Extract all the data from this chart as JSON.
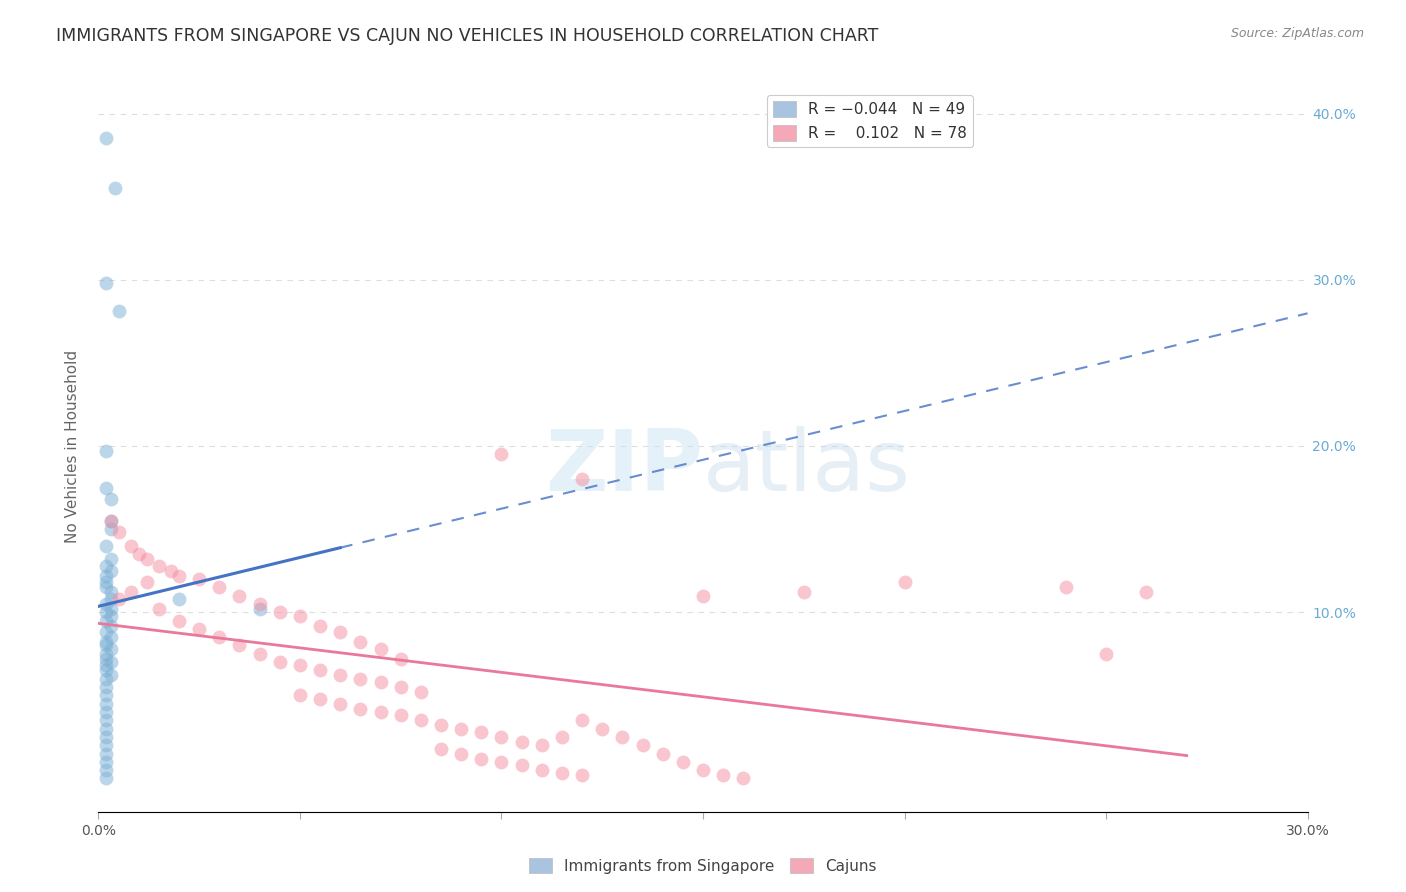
{
  "title": "IMMIGRANTS FROM SINGAPORE VS CAJUN NO VEHICLES IN HOUSEHOLD CORRELATION CHART",
  "source": "Source: ZipAtlas.com",
  "ylabel": "No Vehicles in Household",
  "xlim": [
    0.0,
    0.3
  ],
  "ylim": [
    -0.02,
    0.42
  ],
  "yticks": [
    0.0,
    0.1,
    0.2,
    0.3,
    0.4
  ],
  "xticks": [
    0.0,
    0.05,
    0.1,
    0.15,
    0.2,
    0.25,
    0.3
  ],
  "singapore_color": "#7bafd4",
  "cajun_color": "#f48ca0",
  "singapore_legend_color": "#a8c4e0",
  "cajun_legend_color": "#f4a8b8",
  "singapore_line_color": "#4472c4",
  "cajun_line_color": "#e8799a",
  "background_color": "#ffffff",
  "grid_color": "#dddddd",
  "watermark": "ZIPatlas",
  "singapore_points": [
    [
      0.002,
      0.385
    ],
    [
      0.004,
      0.355
    ],
    [
      0.002,
      0.298
    ],
    [
      0.005,
      0.281
    ],
    [
      0.002,
      0.197
    ],
    [
      0.002,
      0.175
    ],
    [
      0.003,
      0.168
    ],
    [
      0.002,
      0.14
    ],
    [
      0.003,
      0.132
    ],
    [
      0.002,
      0.128
    ],
    [
      0.003,
      0.125
    ],
    [
      0.002,
      0.122
    ],
    [
      0.002,
      0.118
    ],
    [
      0.002,
      0.115
    ],
    [
      0.003,
      0.112
    ],
    [
      0.003,
      0.108
    ],
    [
      0.002,
      0.105
    ],
    [
      0.003,
      0.102
    ],
    [
      0.002,
      0.1
    ],
    [
      0.003,
      0.098
    ],
    [
      0.002,
      0.095
    ],
    [
      0.003,
      0.092
    ],
    [
      0.002,
      0.088
    ],
    [
      0.003,
      0.085
    ],
    [
      0.002,
      0.082
    ],
    [
      0.002,
      0.08
    ],
    [
      0.003,
      0.078
    ],
    [
      0.002,
      0.075
    ],
    [
      0.002,
      0.072
    ],
    [
      0.003,
      0.07
    ],
    [
      0.002,
      0.068
    ],
    [
      0.002,
      0.065
    ],
    [
      0.003,
      0.062
    ],
    [
      0.002,
      0.06
    ],
    [
      0.002,
      0.055
    ],
    [
      0.002,
      0.05
    ],
    [
      0.002,
      0.045
    ],
    [
      0.002,
      0.04
    ],
    [
      0.002,
      0.035
    ],
    [
      0.002,
      0.03
    ],
    [
      0.002,
      0.025
    ],
    [
      0.002,
      0.02
    ],
    [
      0.002,
      0.015
    ],
    [
      0.002,
      0.01
    ],
    [
      0.002,
      0.005
    ],
    [
      0.002,
      0.0
    ],
    [
      0.02,
      0.108
    ],
    [
      0.04,
      0.102
    ],
    [
      0.003,
      0.155
    ],
    [
      0.003,
      0.15
    ]
  ],
  "cajun_points": [
    [
      0.003,
      0.155
    ],
    [
      0.005,
      0.148
    ],
    [
      0.008,
      0.14
    ],
    [
      0.01,
      0.135
    ],
    [
      0.012,
      0.132
    ],
    [
      0.015,
      0.128
    ],
    [
      0.018,
      0.125
    ],
    [
      0.02,
      0.122
    ],
    [
      0.025,
      0.12
    ],
    [
      0.012,
      0.118
    ],
    [
      0.03,
      0.115
    ],
    [
      0.008,
      0.112
    ],
    [
      0.035,
      0.11
    ],
    [
      0.005,
      0.108
    ],
    [
      0.04,
      0.105
    ],
    [
      0.015,
      0.102
    ],
    [
      0.045,
      0.1
    ],
    [
      0.05,
      0.098
    ],
    [
      0.02,
      0.095
    ],
    [
      0.055,
      0.092
    ],
    [
      0.025,
      0.09
    ],
    [
      0.06,
      0.088
    ],
    [
      0.03,
      0.085
    ],
    [
      0.065,
      0.082
    ],
    [
      0.035,
      0.08
    ],
    [
      0.07,
      0.078
    ],
    [
      0.04,
      0.075
    ],
    [
      0.075,
      0.072
    ],
    [
      0.045,
      0.07
    ],
    [
      0.05,
      0.068
    ],
    [
      0.055,
      0.065
    ],
    [
      0.06,
      0.062
    ],
    [
      0.065,
      0.06
    ],
    [
      0.07,
      0.058
    ],
    [
      0.075,
      0.055
    ],
    [
      0.08,
      0.052
    ],
    [
      0.05,
      0.05
    ],
    [
      0.055,
      0.048
    ],
    [
      0.06,
      0.045
    ],
    [
      0.065,
      0.042
    ],
    [
      0.07,
      0.04
    ],
    [
      0.075,
      0.038
    ],
    [
      0.08,
      0.035
    ],
    [
      0.085,
      0.032
    ],
    [
      0.09,
      0.03
    ],
    [
      0.095,
      0.028
    ],
    [
      0.1,
      0.025
    ],
    [
      0.105,
      0.022
    ],
    [
      0.11,
      0.02
    ],
    [
      0.085,
      0.018
    ],
    [
      0.09,
      0.015
    ],
    [
      0.095,
      0.012
    ],
    [
      0.1,
      0.01
    ],
    [
      0.105,
      0.008
    ],
    [
      0.11,
      0.005
    ],
    [
      0.115,
      0.003
    ],
    [
      0.12,
      0.002
    ],
    [
      0.115,
      0.025
    ],
    [
      0.12,
      0.035
    ],
    [
      0.125,
      0.03
    ],
    [
      0.13,
      0.025
    ],
    [
      0.135,
      0.02
    ],
    [
      0.14,
      0.015
    ],
    [
      0.145,
      0.01
    ],
    [
      0.15,
      0.005
    ],
    [
      0.155,
      0.002
    ],
    [
      0.16,
      0.0
    ],
    [
      0.15,
      0.11
    ],
    [
      0.2,
      0.118
    ],
    [
      0.24,
      0.115
    ],
    [
      0.25,
      0.075
    ],
    [
      0.1,
      0.195
    ],
    [
      0.12,
      0.18
    ],
    [
      0.175,
      0.112
    ],
    [
      0.26,
      0.112
    ]
  ]
}
